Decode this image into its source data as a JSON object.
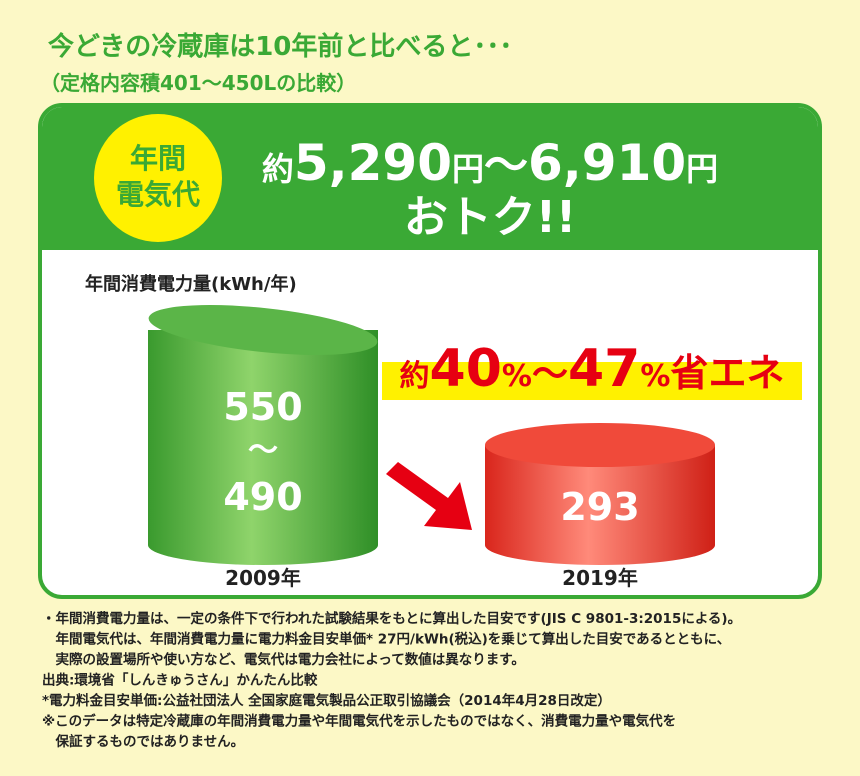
{
  "header": {
    "title": "今どきの冷蔵庫は10年前と比べると･･･",
    "subtitle": "（定格内容積401～450Lの比較）"
  },
  "banner": {
    "badge": [
      "年間",
      "電気代"
    ],
    "savings": [
      "約",
      "5,290",
      "円",
      "～",
      "6,910",
      "円"
    ],
    "savings_line2": "おトク!!"
  },
  "comparison": {
    "axis_label": "年間消費電力量(kWh/年)",
    "headline": [
      "約",
      "40",
      "%",
      "～",
      "47",
      "%",
      "省エネ"
    ],
    "old": {
      "values": [
        "550",
        "～",
        "490"
      ],
      "label": "2009年"
    },
    "new": {
      "values": [
        "293"
      ],
      "label": "2019年"
    }
  },
  "notes": [
    "・年間消費電力量は、一定の条件下で行われた試験結果をもとに算出した目安です(JIS C 9801-3:2015による)。",
    "　年間電気代は、年間消費電力量に電力料金目安単価* 27円/kWh(税込)を乗じて算出した目安であるとともに、",
    "　実際の設置場所や使い方など、電気代は電力会社によって数値は異なります。",
    "出典:環境省「しんきゅうさん」かんたん比較",
    "*電力料金目安単価:公益社団法人 全国家庭電気製品公正取引協議会（2014年4月28日改定）",
    "※このデータは特定冷蔵庫の年間消費電力量や年間電気代を示したものではなく、消費電力量や電気代を",
    "　保証するものではありません。"
  ]
}
